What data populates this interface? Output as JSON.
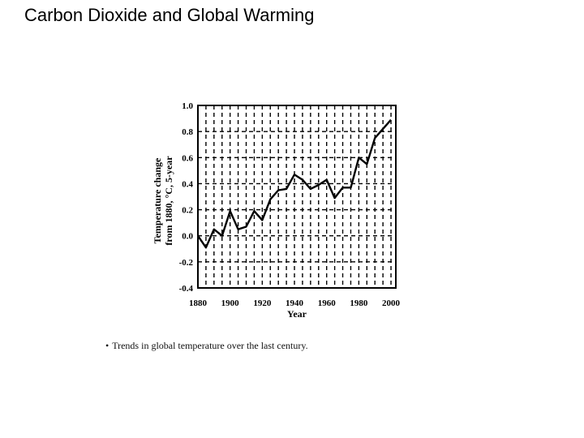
{
  "slide": {
    "title": "Carbon Dioxide and Global Warming",
    "caption": "Trends in global temperature over the last century.",
    "caption_bullet": "•"
  },
  "chart_data": {
    "type": "line",
    "xlabel": "Year",
    "ylabel_line1": "Temperature change",
    "ylabel_line2": "from 1880, °C, 5-year",
    "xlim": [
      1880,
      2003
    ],
    "ylim": [
      -0.4,
      1.0
    ],
    "x_ticks": [
      1880,
      1900,
      1920,
      1940,
      1960,
      1980,
      2000
    ],
    "y_ticks": [
      1.0,
      0.8,
      0.6,
      0.4,
      0.2,
      0.0,
      -0.2,
      -0.4
    ],
    "y_tick_labels": [
      "1.0",
      "0.8",
      "0.6",
      "0.4",
      "0.2",
      "0.0",
      "-0.2",
      "-0.4"
    ],
    "grid": true,
    "line_color": "#000000",
    "series": [
      {
        "x": [
          1880,
          1885,
          1890,
          1895,
          1900,
          1905,
          1910,
          1915,
          1920,
          1925,
          1930,
          1935,
          1940,
          1945,
          1950,
          1955,
          1960,
          1965,
          1970,
          1975,
          1980,
          1985,
          1990,
          1995,
          2000
        ],
        "values": [
          0.0,
          -0.09,
          0.05,
          0.0,
          0.19,
          0.05,
          0.07,
          0.19,
          0.12,
          0.28,
          0.35,
          0.36,
          0.47,
          0.43,
          0.36,
          0.39,
          0.43,
          0.29,
          0.37,
          0.37,
          0.6,
          0.55,
          0.75,
          0.82,
          0.89
        ]
      }
    ]
  }
}
